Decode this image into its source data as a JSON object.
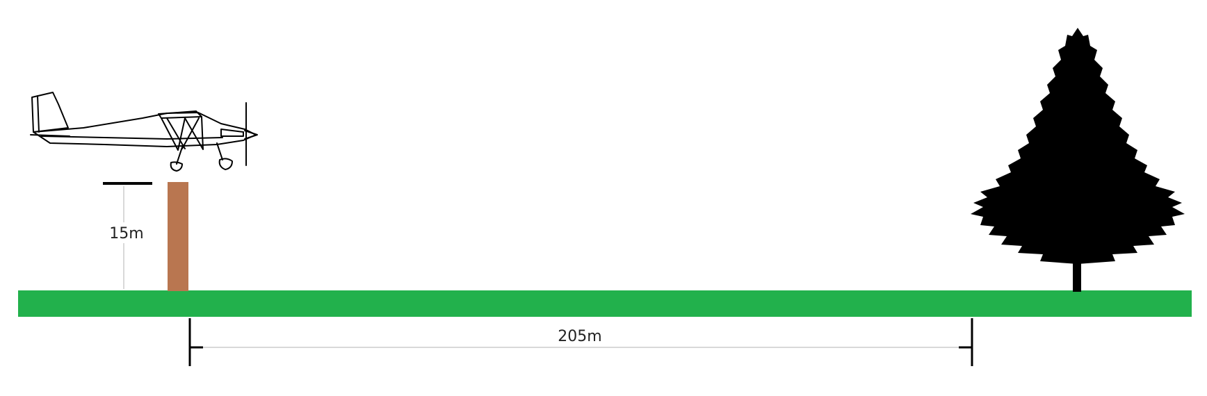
{
  "labels": {
    "obstacle_height": "15m",
    "distance": "205m"
  },
  "colors": {
    "ground": "#22b14c",
    "post": "#b97650",
    "tree": "#000000",
    "outline": "#000000",
    "dimension_line": "#cccccc"
  },
  "icons": {
    "aircraft": "ultralight-airplane-icon",
    "tree": "fir-tree-icon"
  }
}
